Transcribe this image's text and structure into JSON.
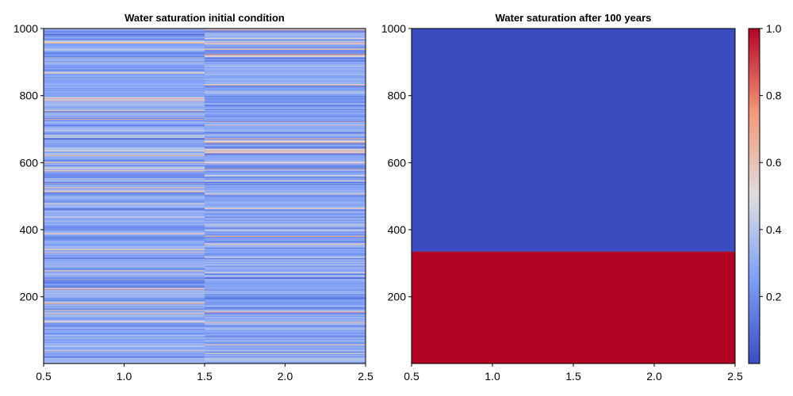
{
  "chart_data": [
    {
      "type": "heatmap",
      "title": "Water saturation initial condition",
      "xlim": [
        0.5,
        2.5
      ],
      "ylim": [
        1,
        1000
      ],
      "x_ticks": [
        "0.5",
        "1.0",
        "1.5",
        "2.0",
        "2.5"
      ],
      "y_ticks": [
        "200",
        "400",
        "600",
        "800",
        "1000"
      ],
      "columns": 2,
      "rows": 1000,
      "value_range_by_column": [
        [
          0.05,
          0.85
        ],
        [
          0.05,
          0.85
        ]
      ],
      "typical_value": 0.3,
      "colormap": "coolwarm",
      "grid": false
    },
    {
      "type": "heatmap",
      "title": "Water saturation after 100 years",
      "xlim": [
        0.5,
        2.5
      ],
      "ylim": [
        1,
        1000
      ],
      "x_ticks": [
        "0.5",
        "1.0",
        "1.5",
        "2.0",
        "2.5"
      ],
      "y_ticks": [
        "200",
        "400",
        "600",
        "800",
        "1000"
      ],
      "regions": [
        {
          "y_from": 1,
          "y_to": 335,
          "value": 1.0
        },
        {
          "y_from": 335,
          "y_to": 1000,
          "value": 0.0
        }
      ],
      "colormap": "coolwarm",
      "grid": false
    }
  ],
  "colorbar": {
    "range": [
      0.0,
      1.0
    ],
    "ticks": [
      "0.2",
      "0.4",
      "0.6",
      "0.8",
      "1.0"
    ],
    "tick_values": [
      0.2,
      0.4,
      0.6,
      0.8,
      1.0
    ],
    "colormap": "coolwarm",
    "colors": {
      "low": "#3b4cc0",
      "mid": "#dddddd",
      "high": "#b40426"
    }
  }
}
